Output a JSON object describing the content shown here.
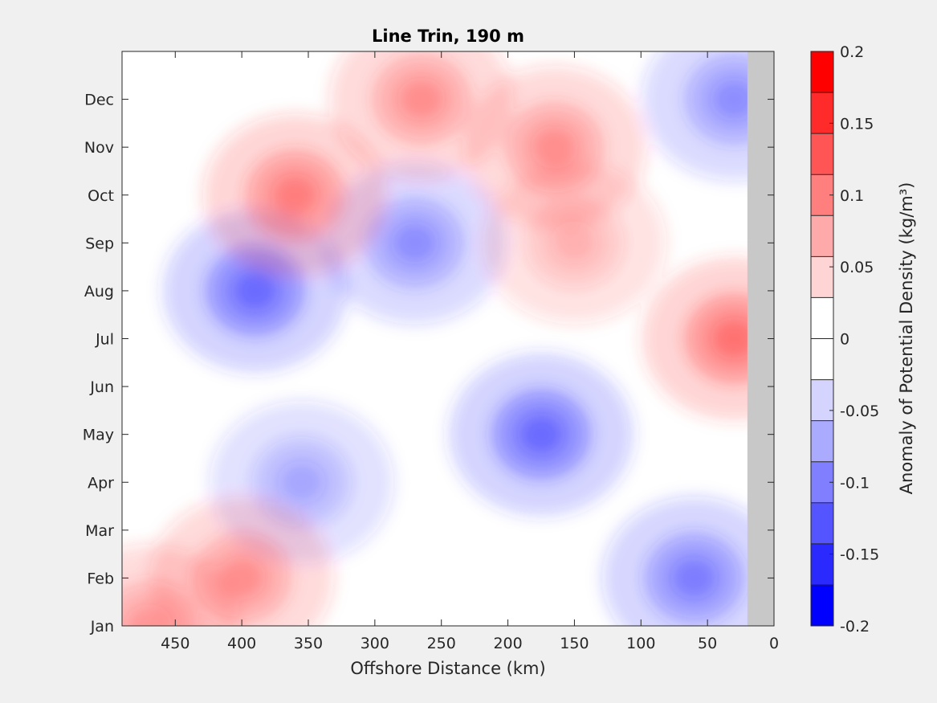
{
  "chart_data": {
    "type": "heatmap",
    "title": "Line Trin, 190 m",
    "xlabel": "Offshore Distance (km)",
    "ylabel": "",
    "colorbar_label": "Anomaly of Potential Density (kg/m³)",
    "x_direction": "reversed",
    "xlim": [
      0,
      490
    ],
    "x_ticks": [
      450,
      400,
      350,
      300,
      250,
      200,
      150,
      100,
      50,
      0
    ],
    "y_ticks": [
      "Jan",
      "Feb",
      "Mar",
      "Apr",
      "May",
      "Jun",
      "Jul",
      "Aug",
      "Sep",
      "Oct",
      "Nov",
      "Dec"
    ],
    "clim": [
      -0.2,
      0.2
    ],
    "colorbar_ticks": [
      "0.2",
      "0.15",
      "0.1",
      "0.05",
      "0",
      "-0.05",
      "-0.1",
      "-0.15",
      "-0.2"
    ],
    "colorbar_levels": [
      "#ff0000",
      "#ff2a2a",
      "#ff5555",
      "#ff7f7f",
      "#ffaaaa",
      "#ffd4d4",
      "#ffffff",
      "#ffffff",
      "#d4d4ff",
      "#aaaaff",
      "#7f7fff",
      "#5555ff",
      "#2a2aff",
      "#0000ff"
    ],
    "no_data_region_km": [
      0,
      20
    ],
    "no_data_color": "#c8c8c8",
    "anomaly_centers": [
      {
        "x_km": 390,
        "month": "Aug",
        "value": -0.15
      },
      {
        "x_km": 270,
        "month": "Sep",
        "value": -0.1
      },
      {
        "x_km": 175,
        "month": "May",
        "value": -0.15
      },
      {
        "x_km": 60,
        "month": "Feb",
        "value": -0.12
      },
      {
        "x_km": 30,
        "month": "Dec",
        "value": -0.1
      },
      {
        "x_km": 355,
        "month": "Apr",
        "value": -0.07
      },
      {
        "x_km": 360,
        "month": "Oct",
        "value": 0.12
      },
      {
        "x_km": 265,
        "month": "Dec",
        "value": 0.1
      },
      {
        "x_km": 165,
        "month": "Nov",
        "value": 0.1
      },
      {
        "x_km": 30,
        "month": "Jul",
        "value": 0.14
      },
      {
        "x_km": 400,
        "month": "Feb",
        "value": 0.1
      },
      {
        "x_km": 470,
        "month": "Jan",
        "value": 0.09
      },
      {
        "x_km": 150,
        "month": "Sep",
        "value": 0.06
      }
    ]
  }
}
